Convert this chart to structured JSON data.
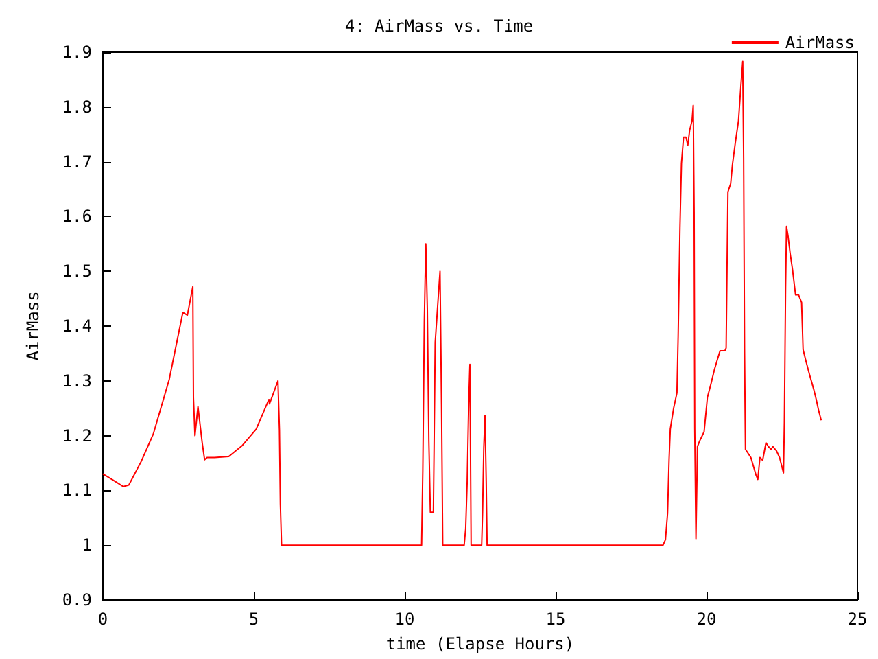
{
  "chart_data": {
    "type": "line",
    "title": "4: AirMass vs. Time",
    "xlabel": "time (Elapse Hours)",
    "ylabel": "AirMass",
    "xlim": [
      0,
      25
    ],
    "xticks": [
      0,
      5,
      10,
      15,
      20,
      25
    ],
    "ylim": [
      0.9,
      1.9
    ],
    "yticks": [
      0.9,
      1,
      1.1,
      1.2,
      1.3,
      1.4,
      1.5,
      1.6,
      1.7,
      1.8,
      1.9
    ],
    "grid": false,
    "legend": "top right",
    "marker": "none",
    "line_style": "solid",
    "series": [
      {
        "name": "AirMass",
        "color": "#ff0000",
        "x": [
          0,
          0.3,
          0.68,
          0.86,
          1.27,
          1.67,
          2.2,
          2.65,
          2.8,
          2.98,
          3.0,
          3.05,
          3.15,
          3.29,
          3.37,
          3.45,
          3.7,
          4.17,
          4.62,
          5.08,
          5.5,
          5.52,
          5.8,
          5.85,
          5.88,
          5.92,
          10.56,
          10.6,
          10.65,
          10.7,
          10.75,
          10.8,
          10.85,
          10.95,
          11.01,
          11.17,
          11.19,
          11.22,
          11.26,
          11.97,
          12.02,
          12.07,
          12.12,
          12.16,
          12.18,
          12.2,
          12.55,
          12.58,
          12.62,
          12.66,
          12.7,
          12.73,
          18.56,
          18.64,
          18.71,
          18.76,
          18.8,
          18.91,
          19.02,
          19.06,
          19.12,
          19.17,
          19.24,
          19.32,
          19.38,
          19.44,
          19.52,
          19.56,
          19.59,
          19.61,
          19.65,
          19.7,
          19.77,
          19.92,
          20.03,
          20.15,
          20.26,
          20.35,
          20.45,
          20.61,
          20.65,
          20.68,
          20.71,
          20.8,
          20.86,
          20.95,
          21.06,
          21.14,
          21.2,
          21.23,
          21.26,
          21.29,
          21.47,
          21.64,
          21.7,
          21.77,
          21.86,
          21.97,
          22.05,
          22.14,
          22.2,
          22.32,
          22.42,
          22.55,
          22.58,
          22.62,
          22.65,
          22.7,
          22.77,
          22.85,
          22.95,
          23.05,
          23.15,
          23.2,
          23.29,
          23.41,
          23.56,
          23.64,
          23.71,
          23.8
        ],
        "values": [
          1.13,
          1.12,
          1.107,
          1.11,
          1.153,
          1.203,
          1.303,
          1.425,
          1.42,
          1.472,
          1.27,
          1.2,
          1.253,
          1.187,
          1.156,
          1.16,
          1.16,
          1.162,
          1.182,
          1.212,
          1.266,
          1.258,
          1.3,
          1.21,
          1.075,
          1.0,
          1.0,
          1.137,
          1.41,
          1.55,
          1.43,
          1.19,
          1.06,
          1.06,
          1.37,
          1.5,
          1.5,
          1.258,
          1.0,
          1.0,
          1.03,
          1.116,
          1.258,
          1.33,
          1.17,
          1.0,
          1.0,
          1.06,
          1.178,
          1.237,
          1.118,
          1.0,
          1.0,
          1.01,
          1.058,
          1.157,
          1.212,
          1.25,
          1.278,
          1.38,
          1.58,
          1.697,
          1.745,
          1.745,
          1.73,
          1.757,
          1.775,
          1.803,
          1.608,
          1.213,
          1.012,
          1.18,
          1.19,
          1.207,
          1.27,
          1.295,
          1.32,
          1.337,
          1.355,
          1.355,
          1.36,
          1.507,
          1.645,
          1.66,
          1.695,
          1.733,
          1.775,
          1.84,
          1.883,
          1.707,
          1.353,
          1.175,
          1.16,
          1.128,
          1.12,
          1.16,
          1.155,
          1.187,
          1.18,
          1.175,
          1.18,
          1.172,
          1.16,
          1.132,
          1.225,
          1.47,
          1.582,
          1.565,
          1.533,
          1.503,
          1.457,
          1.457,
          1.443,
          1.357,
          1.337,
          1.312,
          1.283,
          1.265,
          1.247,
          1.228
        ]
      }
    ]
  }
}
